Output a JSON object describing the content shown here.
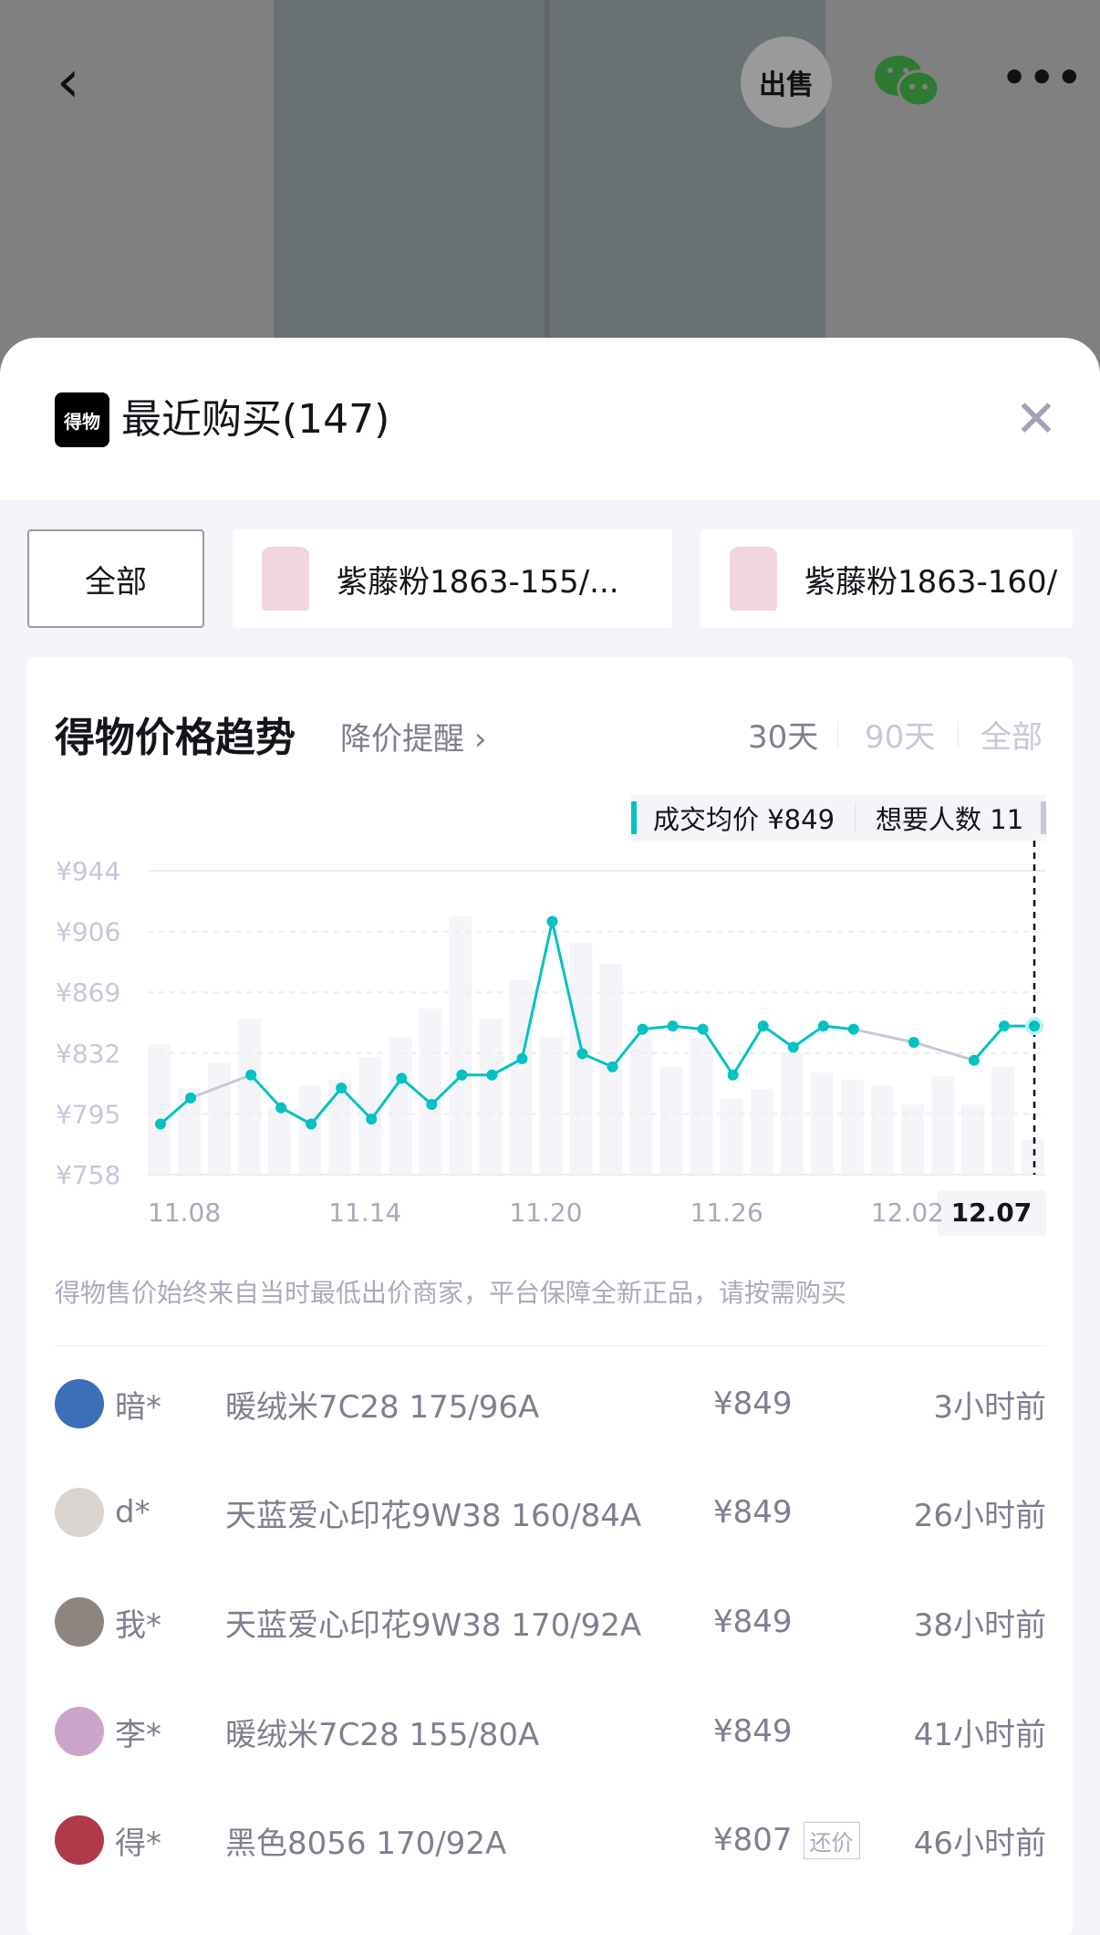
{
  "topbar": {
    "back_icon": "chevron-left-icon",
    "sell_label": "出售",
    "share_icon": "wechat-icon",
    "more_icon": "more-dots-icon"
  },
  "header": {
    "logo_text": "得物",
    "title": "最近购买(147)",
    "close_icon": "close-icon"
  },
  "chips": [
    {
      "label": "全部",
      "selected": true
    },
    {
      "label": "紫藤粉1863-155/..."
    },
    {
      "label": "紫藤粉1863-160/"
    }
  ],
  "trend": {
    "title": "得物价格趋势",
    "alert_label": "降价提醒",
    "alert_chevron": "›",
    "ranges": [
      "30天",
      "90天",
      "全部"
    ],
    "selected_range": "30天",
    "tooltip": {
      "avg_label": "成交均价 ¥849",
      "want_label": "想要人数 11"
    }
  },
  "chart_data": {
    "type": "line",
    "x": [
      "11.08",
      "11.09",
      "11.10",
      "11.11",
      "11.12",
      "11.13",
      "11.14",
      "11.15",
      "11.16",
      "11.17",
      "11.18",
      "11.19",
      "11.20",
      "11.21",
      "11.22",
      "11.23",
      "11.24",
      "11.25",
      "11.26",
      "11.27",
      "11.28",
      "11.29",
      "11.30",
      "12.01",
      "12.02",
      "12.03",
      "12.04",
      "12.05",
      "12.06",
      "12.07"
    ],
    "series": [
      {
        "values": [
          789,
          805,
          null,
          819,
          799,
          789,
          811,
          792,
          817,
          801,
          819,
          819,
          829,
          913,
          832,
          824,
          847,
          849,
          847,
          819,
          849,
          836,
          849,
          847,
          null,
          839,
          null,
          828,
          849,
          849
        ]
      }
    ],
    "volume_bars_relative": [
      428,
      285,
      367,
      512,
      220,
      292,
      312,
      387,
      450,
      545,
      848,
      512,
      638,
      450,
      763,
      692,
      460,
      355,
      450,
      250,
      282,
      400,
      335,
      312,
      292,
      230,
      322,
      230,
      355,
      115
    ],
    "y_ticks": [
      "¥944",
      "¥906",
      "¥869",
      "¥832",
      "¥795",
      "¥758"
    ],
    "ylim": [
      758,
      944
    ],
    "x_ticks": [
      "11.08",
      "11.14",
      "11.20",
      "11.26",
      "12.02",
      "12.07"
    ],
    "selected_x": "12.07",
    "grid": true,
    "colors": {
      "line": "#01c2c3",
      "gap_line": "#c7c7d7",
      "bars": "#f5f5f9"
    }
  },
  "footnote": "得物售价始终来自当时最低出价商家，平台保障全新正品，请按需购买",
  "purchases": [
    {
      "name": "暗*",
      "product": "暖绒米7C28 175/96A",
      "price": "¥849",
      "time": "3小时前",
      "avatar": "#3b6fb6"
    },
    {
      "name": "d*",
      "product": "天蓝爱心印花9W38 160/84A",
      "price": "¥849",
      "time": "26小时前",
      "avatar": "#d9d4d0"
    },
    {
      "name": "我*",
      "product": "天蓝爱心印花9W38 170/92A",
      "price": "¥849",
      "time": "38小时前",
      "avatar": "#8f8580"
    },
    {
      "name": "李*",
      "product": "暖绒米7C28 155/80A",
      "price": "¥849",
      "time": "41小时前",
      "avatar": "#c9a6c9"
    },
    {
      "name": "得*",
      "product": "黑色8056 170/92A",
      "price": "¥807",
      "tag": "还价",
      "time": "46小时前",
      "avatar": "#b03a48"
    }
  ]
}
